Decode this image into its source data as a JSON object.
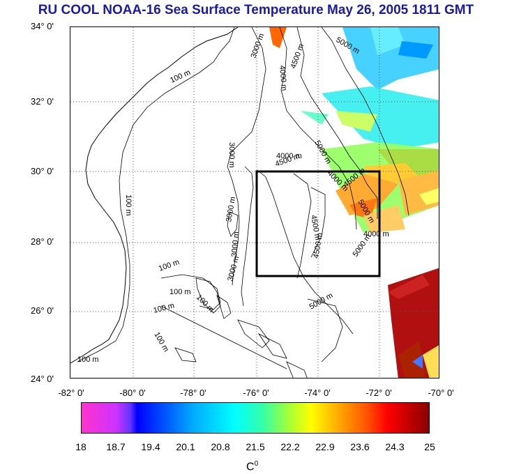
{
  "title": "RU COOL  NOAA-16 Sea Surface Temperature May 26, 2005 1811 GMT",
  "map": {
    "lat_labels": [
      "34° 0'",
      "32° 0'",
      "30° 0'",
      "28° 0'",
      "26° 0'",
      "24° 0'"
    ],
    "lon_labels": [
      "-82° 0'",
      "-80° 0'",
      "-78° 0'",
      "-76° 0'",
      "-74° 0'",
      "-72° 0'",
      "-70° 0'"
    ],
    "contour_labels": [
      "100 m",
      "100 m",
      "100 m",
      "100 m",
      "100 m",
      "100 m",
      "100 m",
      "100 m",
      "3000 m",
      "3000 m",
      "3000 m",
      "3000 m",
      "3000 m",
      "4000 m",
      "4000 m",
      "4000 m",
      "4000 m",
      "4500 m",
      "4500 m",
      "4500 m",
      "4500 m",
      "4500 m",
      "5000 m",
      "5000 m",
      "5000 m",
      "5000 m",
      "5000 m"
    ],
    "study_box": {
      "lon_min": -76,
      "lon_max": -72,
      "lat_min": 27,
      "lat_max": 30
    }
  },
  "colorbar": {
    "ticks": [
      "18",
      "18.7",
      "19.4",
      "20.1",
      "20.8",
      "21.5",
      "22.2",
      "22.9",
      "23.6",
      "24.3",
      "25"
    ],
    "unit": "C",
    "unit_sup": "0",
    "colors": {
      "min": "#ff33cc",
      "low": "#0000ff",
      "mid": "#00ffff",
      "warm": "#ffff00",
      "max": "#880000"
    }
  }
}
